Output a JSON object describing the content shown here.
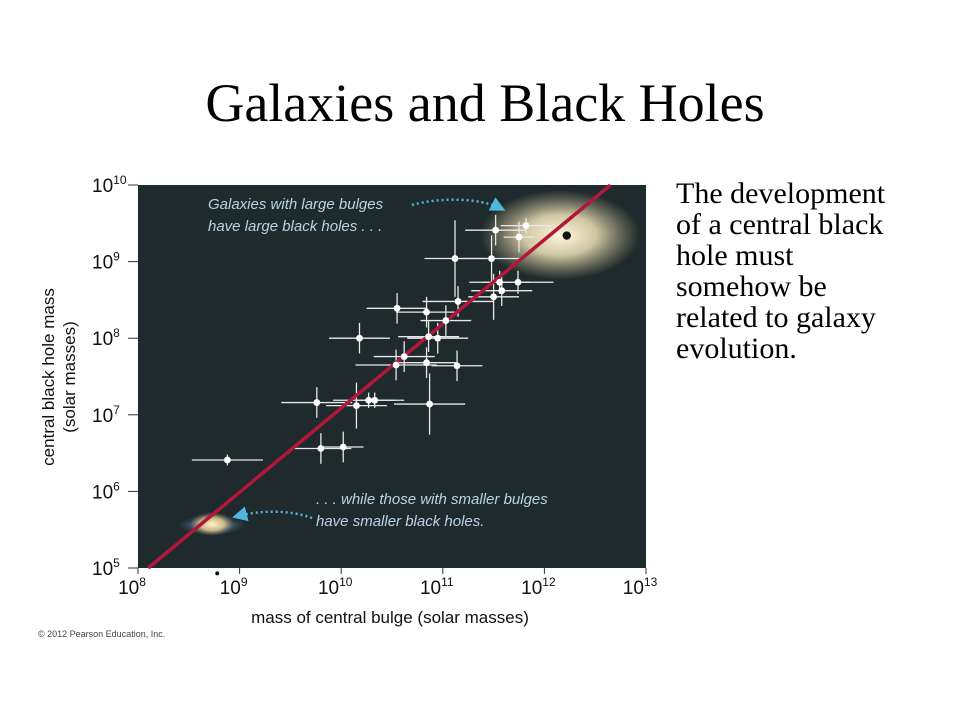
{
  "slide": {
    "title": "Galaxies and Black Holes",
    "body_lines": [
      "The development",
      "of a central black",
      "hole must",
      "somehow be",
      "related to galaxy",
      "evolution."
    ],
    "copyright": "© 2012 Pearson Education, Inc."
  },
  "colors": {
    "plot_background": "#1f2a2c",
    "fit_line": "#b2163a",
    "points": "#ffffff",
    "annotation_text": "#b8d4e8",
    "annotation_arrow": "#4fb8e0"
  },
  "chart_data": {
    "type": "scatter",
    "xlabel": "mass of central bulge (solar masses)",
    "ylabel_line1": "central black hole mass",
    "ylabel_line2": "(solar masses)",
    "x_scale": "log",
    "y_scale": "log",
    "xlim": [
      100000000.0,
      10000000000000.0
    ],
    "ylim": [
      100000.0,
      10000000000.0
    ],
    "x_ticks": [
      {
        "exp": 8,
        "base": "10",
        "sup": "8"
      },
      {
        "exp": 9,
        "base": "10",
        "sup": "9"
      },
      {
        "exp": 10,
        "base": "10",
        "sup": "10"
      },
      {
        "exp": 11,
        "base": "10",
        "sup": "11"
      },
      {
        "exp": 12,
        "base": "10",
        "sup": "12"
      },
      {
        "exp": 13,
        "base": "10",
        "sup": "13"
      }
    ],
    "y_ticks": [
      {
        "exp": 5,
        "base": "10",
        "sup": "5"
      },
      {
        "exp": 6,
        "base": "10",
        "sup": "6"
      },
      {
        "exp": 7,
        "base": "10",
        "sup": "7"
      },
      {
        "exp": 8,
        "base": "10",
        "sup": "8"
      },
      {
        "exp": 9,
        "base": "10",
        "sup": "9"
      },
      {
        "exp": 10,
        "base": "10",
        "sup": "10"
      }
    ],
    "grid": false,
    "fit_line": {
      "log_x": [
        8.1,
        12.65
      ],
      "log_y": [
        5.0,
        10.0
      ]
    },
    "points": [
      {
        "lx": 8.88,
        "ly": 6.41,
        "xerr": 0.35,
        "yerr": 0.07
      },
      {
        "lx": 9.8,
        "ly": 6.56,
        "xerr": 0.3,
        "yerr": 0.2
      },
      {
        "lx": 10.02,
        "ly": 6.58,
        "xerr": 0.2,
        "yerr": 0.2
      },
      {
        "lx": 9.76,
        "ly": 7.16,
        "xerr": 0.35,
        "yerr": 0.2
      },
      {
        "lx": 10.15,
        "ly": 7.12,
        "xerr": 0.3,
        "yerr": 0.3
      },
      {
        "lx": 10.27,
        "ly": 7.19,
        "xerr": 0.35,
        "yerr": 0.1
      },
      {
        "lx": 10.33,
        "ly": 7.19,
        "xerr": 0.2,
        "yerr": 0.1
      },
      {
        "lx": 10.87,
        "ly": 7.14,
        "xerr": 0.35,
        "yerr": 0.4
      },
      {
        "lx": 10.18,
        "ly": 8.0,
        "xerr": 0.3,
        "yerr": 0.2
      },
      {
        "lx": 10.54,
        "ly": 7.65,
        "xerr": 0.4,
        "yerr": 0.2
      },
      {
        "lx": 10.62,
        "ly": 7.76,
        "xerr": 0.3,
        "yerr": 0.2
      },
      {
        "lx": 10.55,
        "ly": 8.39,
        "xerr": 0.3,
        "yerr": 0.2
      },
      {
        "lx": 10.84,
        "ly": 8.34,
        "xerr": 0.3,
        "yerr": 0.2
      },
      {
        "lx": 10.86,
        "ly": 8.02,
        "xerr": 0.3,
        "yerr": 0.2
      },
      {
        "lx": 10.84,
        "ly": 7.68,
        "xerr": 0.3,
        "yerr": 0.2
      },
      {
        "lx": 10.95,
        "ly": 8.0,
        "xerr": 0.3,
        "yerr": 0.2
      },
      {
        "lx": 11.03,
        "ly": 8.23,
        "xerr": 0.25,
        "yerr": 0.2
      },
      {
        "lx": 11.14,
        "ly": 7.64,
        "xerr": 0.25,
        "yerr": 0.2
      },
      {
        "lx": 11.15,
        "ly": 8.48,
        "xerr": 0.35,
        "yerr": 0.2
      },
      {
        "lx": 11.12,
        "ly": 9.04,
        "xerr": 0.3,
        "yerr": 0.5
      },
      {
        "lx": 11.48,
        "ly": 9.04,
        "xerr": 0.3,
        "yerr": 0.3
      },
      {
        "lx": 11.5,
        "ly": 8.54,
        "xerr": 0.25,
        "yerr": 0.3
      },
      {
        "lx": 11.56,
        "ly": 8.73,
        "xerr": 0.3,
        "yerr": 0.15
      },
      {
        "lx": 11.58,
        "ly": 8.62,
        "xerr": 0.3,
        "yerr": 0.2
      },
      {
        "lx": 11.74,
        "ly": 8.73,
        "xerr": 0.35,
        "yerr": 0.15
      },
      {
        "lx": 11.52,
        "ly": 9.41,
        "xerr": 0.3,
        "yerr": 0.2
      },
      {
        "lx": 11.75,
        "ly": 9.32,
        "xerr": 0.15,
        "yerr": 0.2
      },
      {
        "lx": 11.82,
        "ly": 9.47,
        "xerr": 0.25,
        "yerr": 0.1
      }
    ],
    "highlight_points": [
      {
        "lx": 12.22,
        "ly": 9.34
      },
      {
        "lx": 8.78,
        "ly": 4.93
      }
    ],
    "annotations": [
      {
        "lines": [
          "Galaxies with large bulges",
          "have large black holes . . ."
        ]
      },
      {
        "lines": [
          ". . . while those with smaller bulges",
          "have smaller black holes."
        ]
      }
    ]
  }
}
